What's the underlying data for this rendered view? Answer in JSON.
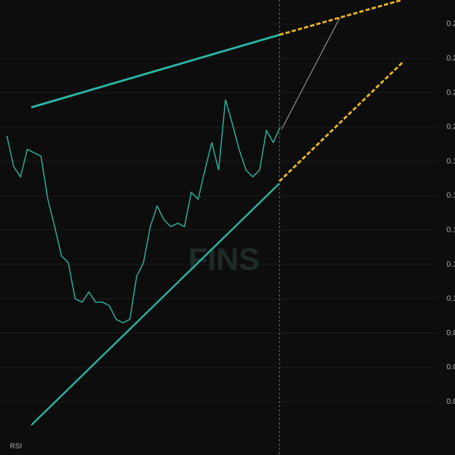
{
  "chart_data": {
    "type": "line",
    "watermark": "FINS",
    "indicator_label": "RSI",
    "x": [
      0,
      1,
      2,
      3,
      4,
      5,
      6,
      7,
      8,
      9,
      10,
      11,
      12,
      13,
      14,
      15,
      16,
      17,
      18,
      19,
      20,
      21,
      22,
      23,
      24,
      25,
      26,
      27,
      28,
      29,
      30,
      31,
      32,
      33,
      34,
      35,
      36,
      37,
      38,
      39,
      40
    ],
    "xlim": [
      -1,
      63
    ],
    "series": [
      {
        "color": "#2bb3a0",
        "values": [
          0.155,
          0.137,
          0.131,
          0.147,
          0.145,
          0.143,
          0.118,
          0.102,
          0.085,
          0.081,
          0.06,
          0.058,
          0.064,
          0.058,
          0.058,
          0.056,
          0.048,
          0.046,
          0.048,
          0.073,
          0.081,
          0.102,
          0.114,
          0.106,
          0.102,
          0.104,
          0.102,
          0.122,
          0.118,
          0.135,
          0.151,
          0.135,
          0.176,
          0.162,
          0.147,
          0.135,
          0.131,
          0.135,
          0.158,
          0.151,
          0.16
        ]
      }
    ],
    "ylim": [
      -0.031,
      0.234
    ],
    "yticks": [
      {
        "value": 0.22,
        "label": "0.2"
      },
      {
        "value": 0.2,
        "label": "0.2"
      },
      {
        "value": 0.18,
        "label": "0.2"
      },
      {
        "value": 0.16,
        "label": "0.2"
      },
      {
        "value": 0.14,
        "label": "0.1"
      },
      {
        "value": 0.12,
        "label": "0.1"
      },
      {
        "value": 0.1,
        "label": "0.1"
      },
      {
        "value": 0.08,
        "label": "0.1"
      },
      {
        "value": 0.06,
        "label": "0.1"
      },
      {
        "value": 0.04,
        "label": "0.0"
      },
      {
        "value": 0.02,
        "label": "0.0"
      },
      {
        "value": 0.0,
        "label": "0.0"
      }
    ],
    "grid": true
  }
}
